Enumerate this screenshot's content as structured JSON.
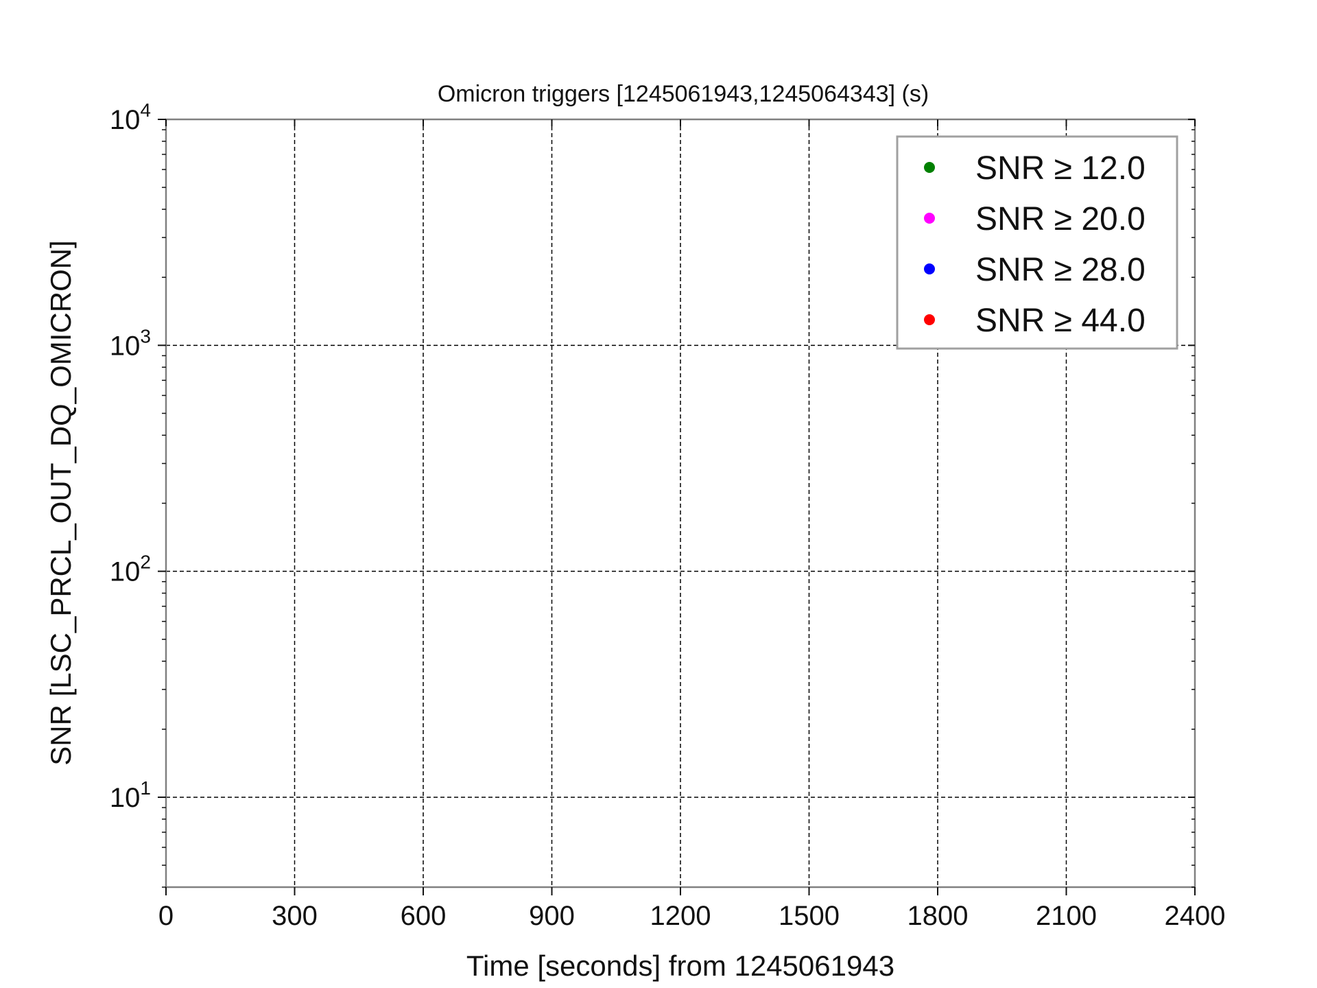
{
  "chart_data": {
    "type": "scatter",
    "title": "Omicron triggers [1245061943,1245064343] (s)",
    "xlabel": "Time [seconds] from 1245061943",
    "ylabel": "SNR [LSC_PRCL_OUT_DQ_OMICRON]",
    "xlim": [
      0,
      2400
    ],
    "ylim": [
      4,
      10000
    ],
    "yscale": "log",
    "grid": true,
    "legend_position": "top-right",
    "x_ticks": [
      0,
      300,
      600,
      900,
      1200,
      1500,
      1800,
      2100,
      2400
    ],
    "x_tick_labels": [
      "0",
      "300",
      "600",
      "900",
      "1200",
      "1500",
      "1800",
      "2100",
      "2400"
    ],
    "y_ticks": [
      10,
      100,
      1000,
      10000
    ],
    "y_tick_labels": [
      {
        "base": "10",
        "exp": "1"
      },
      {
        "base": "10",
        "exp": "2"
      },
      {
        "base": "10",
        "exp": "3"
      },
      {
        "base": "10",
        "exp": "4"
      }
    ],
    "series": [
      {
        "name": "SNR  ≥ 12.0",
        "color": "#008000",
        "points": []
      },
      {
        "name": "SNR  ≥ 20.0",
        "color": "#ff00ff",
        "points": []
      },
      {
        "name": "SNR  ≥ 28.0",
        "color": "#0000ff",
        "points": []
      },
      {
        "name": "SNR  ≥ 44.0",
        "color": "#ff0000",
        "points": []
      }
    ]
  }
}
